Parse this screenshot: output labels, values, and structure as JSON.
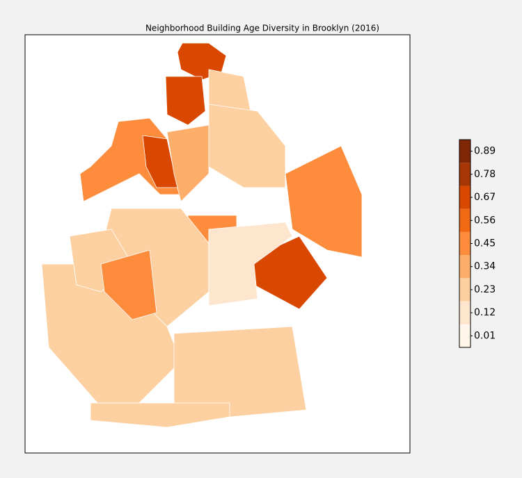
{
  "chart_data": {
    "type": "choropleth",
    "title": "Neighborhood Building Age Diversity in Brooklyn (2016)",
    "colorbar": {
      "levels": [
        -0.045,
        0.065,
        0.175,
        0.285,
        0.395,
        0.505,
        0.615,
        0.725,
        0.835,
        0.945
      ],
      "colors": [
        "#fff5eb",
        "#fee6ce",
        "#fdd0a2",
        "#fdae6b",
        "#fd8d3c",
        "#f16913",
        "#d94801",
        "#a63603",
        "#7f2704"
      ],
      "ticks": [
        0.01,
        0.12,
        0.23,
        0.34,
        0.45,
        0.56,
        0.67,
        0.78,
        0.89
      ]
    },
    "region_values": [
      0.62,
      0.7,
      0.25,
      0.2,
      0.48,
      0.66,
      0.3,
      0.42,
      0.62,
      0.5,
      0.28,
      0.18,
      0.2,
      0.12,
      0.25,
      0.2,
      0.4
    ]
  }
}
